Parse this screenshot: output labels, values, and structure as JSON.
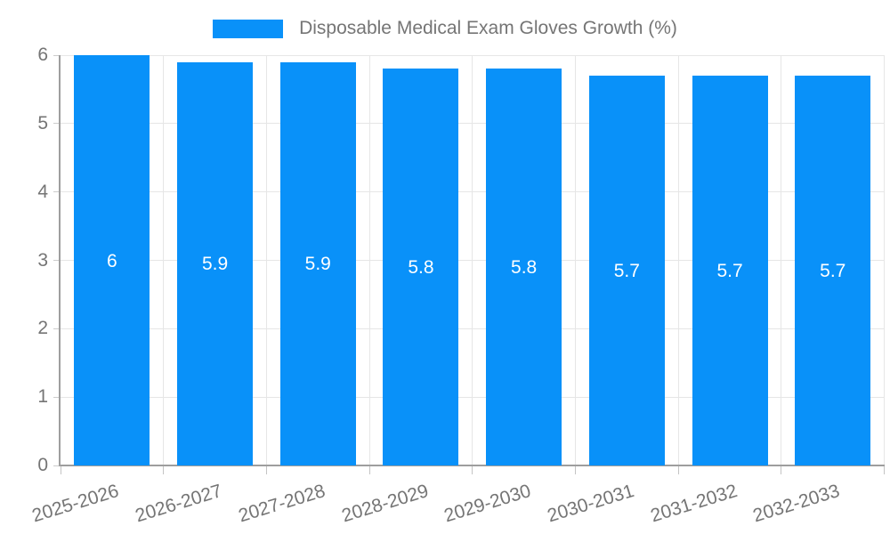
{
  "chart_data": {
    "type": "bar",
    "title": "Disposable Medical Exam Gloves Growth (%)",
    "categories": [
      "2025-2026",
      "2026-2027",
      "2027-2028",
      "2028-2029",
      "2029-2030",
      "2030-2031",
      "2031-2032",
      "2032-2033"
    ],
    "values": [
      6,
      5.9,
      5.9,
      5.8,
      5.8,
      5.7,
      5.7,
      5.7
    ],
    "bar_labels": [
      "6",
      "5.9",
      "5.9",
      "5.8",
      "5.8",
      "5.7",
      "5.7",
      "5.7"
    ],
    "xlabel": "",
    "ylabel": "",
    "ylim": [
      0,
      6
    ],
    "yticks": [
      "0",
      "1",
      "2",
      "3",
      "4",
      "5",
      "6"
    ],
    "grid": true,
    "legend": {
      "position": "top",
      "label": "Disposable Medical Exam Gloves Growth (%)"
    },
    "colors": {
      "bar": "#0991f9",
      "bar_label": "#ffffff",
      "axis_text": "#757575",
      "grid": "#e6e6e6",
      "axis_line": "#9e9e9e",
      "background": "#ffffff"
    }
  }
}
